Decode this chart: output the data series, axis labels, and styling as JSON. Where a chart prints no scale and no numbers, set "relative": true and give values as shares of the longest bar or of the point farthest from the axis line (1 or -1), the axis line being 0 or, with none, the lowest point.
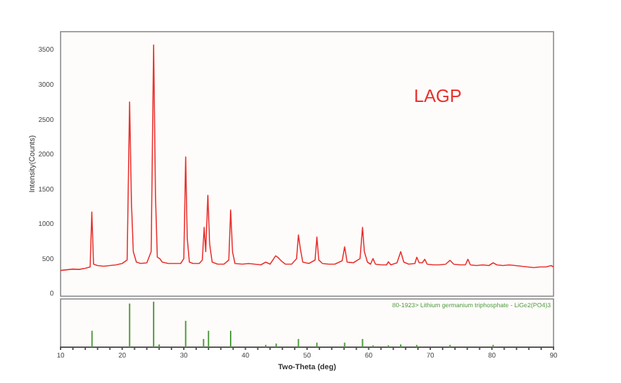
{
  "chart_data": [
    {
      "type": "line",
      "ylabel": "Intensity(Counts)",
      "annotations": [
        "LAGP"
      ],
      "xlim": [
        10,
        90
      ],
      "ylim": [
        -40,
        3760
      ],
      "yticks": [
        0,
        500,
        1000,
        1500,
        2000,
        2500,
        3000,
        3500
      ],
      "tick_labels": "y",
      "series": [
        {
          "color": "#e8322f",
          "x": [
            10,
            11,
            12,
            13,
            14,
            14.8,
            15.07,
            15.35,
            16,
            17,
            18,
            19,
            20,
            20.8,
            21.2,
            21.5,
            21.8,
            22.3,
            23,
            24,
            24.7,
            25.1,
            25.4,
            25.7,
            26.1,
            26.5,
            27.5,
            28.5,
            29.5,
            30.0,
            30.3,
            30.55,
            30.9,
            31.5,
            32.5,
            33.0,
            33.3,
            33.55,
            33.9,
            34.2,
            34.6,
            35.5,
            36.5,
            37.3,
            37.6,
            37.9,
            38.3,
            39.5,
            40.5,
            41.5,
            42.5,
            43.3,
            44,
            44.9,
            45.3,
            45.9,
            46.5,
            47.5,
            48.3,
            48.6,
            48.9,
            49.3,
            50.3,
            51.3,
            51.6,
            51.9,
            52.5,
            53.5,
            54.5,
            55.7,
            56.1,
            56.5,
            57.5,
            58.6,
            59.0,
            59.3,
            59.8,
            60.3,
            60.7,
            61.1,
            62,
            62.9,
            63.2,
            63.6,
            64.6,
            65.2,
            65.7,
            66.5,
            67.5,
            67.8,
            68.2,
            68.7,
            69.1,
            69.5,
            70.5,
            71.5,
            72.5,
            73.2,
            73.8,
            74.8,
            75.7,
            76.1,
            76.5,
            77.5,
            78.5,
            79.5,
            80.2,
            80.8,
            81.8,
            82.8,
            83.8,
            84.8,
            85.8,
            86.8,
            87.8,
            88.8,
            89.6,
            90
          ],
          "values": [
            330,
            340,
            350,
            345,
            360,
            380,
            1170,
            420,
            400,
            390,
            400,
            410,
            430,
            480,
            2750,
            1300,
            600,
            450,
            430,
            440,
            600,
            3570,
            1400,
            520,
            500,
            450,
            430,
            430,
            430,
            500,
            1960,
            800,
            450,
            430,
            430,
            480,
            950,
            600,
            1410,
            700,
            450,
            420,
            420,
            480,
            1200,
            600,
            430,
            420,
            430,
            420,
            410,
            450,
            420,
            540,
            515,
            460,
            420,
            420,
            500,
            840,
            650,
            450,
            430,
            480,
            810,
            480,
            430,
            420,
            420,
            470,
            670,
            450,
            440,
            500,
            950,
            600,
            450,
            420,
            500,
            420,
            410,
            410,
            455,
            410,
            440,
            600,
            450,
            420,
            430,
            520,
            440,
            440,
            490,
            420,
            410,
            410,
            420,
            475,
            420,
            410,
            410,
            490,
            410,
            400,
            410,
            400,
            440,
            410,
            400,
            410,
            400,
            390,
            380,
            370,
            380,
            380,
            400,
            380
          ]
        }
      ]
    },
    {
      "type": "bar",
      "relative": true,
      "xlabel": "Two-Theta (deg)",
      "annotations": [
        "80-1923> Lithium germanium triphosphate - LiGe2(PO4)3"
      ],
      "xlim": [
        10,
        90
      ],
      "tick_labels": "x",
      "xticks": [
        10,
        {
          "value": 12,
          "label": null
        },
        {
          "value": 14,
          "label": null
        },
        {
          "value": 16,
          "label": null
        },
        {
          "value": 18,
          "label": null
        },
        20,
        {
          "value": 22,
          "label": null
        },
        {
          "value": 24,
          "label": null
        },
        {
          "value": 26,
          "label": null
        },
        {
          "value": 28,
          "label": null
        },
        30,
        {
          "value": 32,
          "label": null
        },
        {
          "value": 34,
          "label": null
        },
        {
          "value": 36,
          "label": null
        },
        {
          "value": 38,
          "label": null
        },
        40,
        {
          "value": 42,
          "label": null
        },
        {
          "value": 44,
          "label": null
        },
        {
          "value": 46,
          "label": null
        },
        {
          "value": 48,
          "label": null
        },
        50,
        {
          "value": 52,
          "label": null
        },
        {
          "value": 54,
          "label": null
        },
        {
          "value": 56,
          "label": null
        },
        {
          "value": 58,
          "label": null
        },
        60,
        {
          "value": 62,
          "label": null
        },
        {
          "value": 64,
          "label": null
        },
        {
          "value": 66,
          "label": null
        },
        {
          "value": 68,
          "label": null
        },
        70,
        {
          "value": 72,
          "label": null
        },
        {
          "value": 74,
          "label": null
        },
        {
          "value": 76,
          "label": null
        },
        {
          "value": 78,
          "label": null
        },
        80,
        {
          "value": 82,
          "label": null
        },
        {
          "value": 84,
          "label": null
        },
        {
          "value": 86,
          "label": null
        },
        {
          "value": 88,
          "label": null
        },
        90
      ],
      "x": [
        15.1,
        21.2,
        25.1,
        26.0,
        30.3,
        33.2,
        34.0,
        37.6,
        43.3,
        45.0,
        48.6,
        51.6,
        56.1,
        59.0,
        60.7,
        63.2,
        65.2,
        67.8,
        73.2,
        80.2
      ],
      "values": [
        0.36,
        0.96,
        1,
        0.06,
        0.58,
        0.18,
        0.36,
        0.36,
        0.05,
        0.08,
        0.18,
        0.1,
        0.1,
        0.18,
        0.04,
        0.04,
        0.06,
        0.05,
        0.05,
        0.05
      ],
      "color": "#4f9a3f"
    }
  ]
}
